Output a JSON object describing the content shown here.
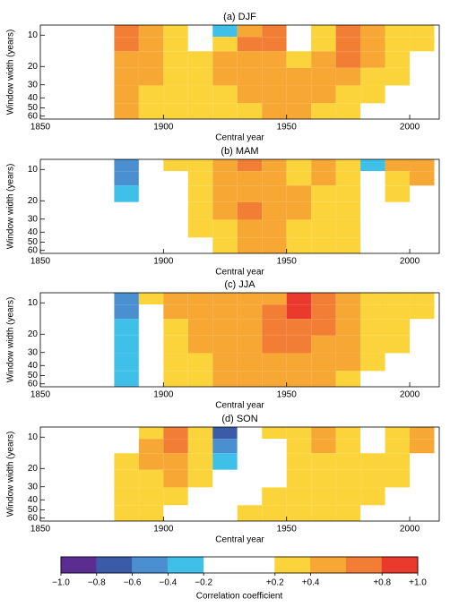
{
  "chart_data": [
    {
      "type": "heatmap",
      "title": "(a) DJF",
      "xlabel": "Central year",
      "ylabel": "Window width (years)",
      "x": [
        1885,
        1895,
        1905,
        1915,
        1925,
        1935,
        1945,
        1955,
        1965,
        1975,
        1985,
        1995,
        2005
      ],
      "y": [
        9,
        12,
        17,
        25,
        37,
        55
      ],
      "z": [
        [
          0.6,
          0.5,
          0.3,
          0.1,
          -0.3,
          0.5,
          0.7,
          -0.1,
          0.3,
          0.7,
          0.5,
          0.3,
          0.3
        ],
        [
          0.7,
          0.5,
          0.3,
          0.1,
          0.3,
          0.6,
          0.6,
          0.1,
          0.3,
          0.7,
          0.5,
          0.3,
          0.3
        ],
        [
          0.5,
          0.5,
          0.3,
          0.3,
          0.5,
          0.5,
          0.5,
          0.3,
          0.5,
          0.6,
          0.5,
          0.3,
          null
        ],
        [
          0.5,
          0.5,
          0.3,
          0.3,
          0.5,
          0.5,
          0.5,
          0.5,
          0.5,
          0.5,
          0.3,
          0.3,
          null
        ],
        [
          0.5,
          0.3,
          0.3,
          0.3,
          0.3,
          0.5,
          0.5,
          0.5,
          0.5,
          0.3,
          0.3,
          null,
          null
        ],
        [
          0.5,
          0.3,
          0.3,
          0.3,
          0.3,
          0.3,
          0.5,
          0.5,
          0.3,
          0.3,
          null,
          null,
          null
        ]
      ],
      "xlim": [
        1850,
        2012
      ],
      "xticks": [
        1850,
        1900,
        1950,
        2000
      ],
      "ylim": [
        8,
        64
      ],
      "yticks": [
        10,
        20,
        30,
        40,
        50,
        60
      ],
      "yscale": "log"
    },
    {
      "type": "heatmap",
      "title": "(b) MAM",
      "xlabel": "Central year",
      "ylabel": "Window width (years)",
      "x": [
        1885,
        1895,
        1905,
        1915,
        1925,
        1935,
        1945,
        1955,
        1965,
        1975,
        1985,
        1995,
        2005
      ],
      "y": [
        9,
        12,
        17,
        25,
        37,
        55
      ],
      "z": [
        [
          -0.5,
          0.1,
          0.3,
          0.3,
          0.5,
          0.6,
          0.5,
          0.3,
          0.5,
          0.3,
          -0.3,
          0.5,
          0.5
        ],
        [
          -0.5,
          0.1,
          0.1,
          0.3,
          0.5,
          0.5,
          0.5,
          0.3,
          0.5,
          0.3,
          0.1,
          0.3,
          0.5
        ],
        [
          -0.3,
          0.1,
          0.1,
          0.3,
          0.5,
          0.5,
          0.5,
          0.5,
          0.3,
          0.3,
          0.1,
          0.3,
          null
        ],
        [
          0.1,
          0.1,
          0.1,
          0.3,
          0.5,
          0.6,
          0.5,
          0.5,
          0.3,
          0.3,
          0.1,
          0.1,
          null
        ],
        [
          0.1,
          0.1,
          0.1,
          0.3,
          0.3,
          0.5,
          0.5,
          0.3,
          0.3,
          0.3,
          0.1,
          null,
          null
        ],
        [
          0.1,
          0.1,
          0.1,
          0.1,
          0.3,
          0.5,
          0.5,
          0.3,
          0.3,
          0.3,
          null,
          null,
          null
        ]
      ],
      "xlim": [
        1850,
        2012
      ],
      "xticks": [
        1850,
        1900,
        1950,
        2000
      ],
      "ylim": [
        8,
        64
      ],
      "yticks": [
        10,
        20,
        30,
        40,
        50,
        60
      ],
      "yscale": "log"
    },
    {
      "type": "heatmap",
      "title": "(c) JJA",
      "xlabel": "Central year",
      "ylabel": "Window width (years)",
      "x": [
        1885,
        1895,
        1905,
        1915,
        1925,
        1935,
        1945,
        1955,
        1965,
        1975,
        1985,
        1995,
        2005
      ],
      "y": [
        9,
        12,
        17,
        25,
        37,
        55
      ],
      "z": [
        [
          -0.5,
          0.3,
          0.5,
          0.5,
          0.5,
          0.5,
          0.5,
          0.9,
          0.7,
          0.5,
          0.3,
          0.3,
          0.3
        ],
        [
          -0.5,
          0.1,
          0.5,
          0.5,
          0.5,
          0.5,
          0.6,
          0.8,
          0.7,
          0.5,
          0.3,
          0.3,
          0.3
        ],
        [
          -0.3,
          0.1,
          0.3,
          0.5,
          0.5,
          0.5,
          0.6,
          0.7,
          0.6,
          0.5,
          0.3,
          0.3,
          null
        ],
        [
          -0.3,
          0.1,
          0.3,
          0.5,
          0.5,
          0.5,
          0.6,
          0.6,
          0.5,
          0.5,
          0.3,
          0.3,
          null
        ],
        [
          -0.3,
          0.1,
          0.3,
          0.3,
          0.5,
          0.5,
          0.5,
          0.5,
          0.5,
          0.5,
          0.3,
          null,
          null
        ],
        [
          -0.3,
          0.1,
          0.3,
          0.3,
          0.5,
          0.5,
          0.5,
          0.5,
          0.5,
          0.3,
          null,
          null,
          null
        ]
      ],
      "xlim": [
        1850,
        2012
      ],
      "xticks": [
        1850,
        1900,
        1950,
        2000
      ],
      "ylim": [
        8,
        64
      ],
      "yticks": [
        10,
        20,
        30,
        40,
        50,
        60
      ],
      "yscale": "log"
    },
    {
      "type": "heatmap",
      "title": "(d) SON",
      "xlabel": "Central year",
      "ylabel": "Window width (years)",
      "x": [
        1885,
        1895,
        1905,
        1915,
        1925,
        1935,
        1945,
        1955,
        1965,
        1975,
        1985,
        1995,
        2005
      ],
      "y": [
        9,
        12,
        17,
        25,
        37,
        55
      ],
      "z": [
        [
          0.1,
          0.3,
          0.7,
          0.3,
          -0.7,
          0.1,
          0.3,
          0.3,
          0.5,
          0.3,
          0.1,
          0.3,
          0.5
        ],
        [
          0.1,
          0.5,
          0.6,
          0.3,
          -0.5,
          0.1,
          0.1,
          0.3,
          0.5,
          0.3,
          0.1,
          0.3,
          0.5
        ],
        [
          0.3,
          0.5,
          0.5,
          0.3,
          -0.3,
          0.1,
          0.1,
          0.3,
          0.3,
          0.3,
          0.3,
          0.3,
          null
        ],
        [
          0.3,
          0.3,
          0.5,
          0.3,
          0.1,
          0.1,
          0.1,
          0.3,
          0.3,
          0.3,
          0.3,
          0.3,
          null
        ],
        [
          0.3,
          0.3,
          0.3,
          0.1,
          0.1,
          0.1,
          0.3,
          0.3,
          0.3,
          0.3,
          0.3,
          null,
          null
        ],
        [
          0.3,
          0.3,
          0.1,
          0.1,
          0.1,
          0.3,
          0.3,
          0.3,
          0.3,
          0.3,
          null,
          null,
          null
        ]
      ],
      "xlim": [
        1850,
        2012
      ],
      "xticks": [
        1850,
        1900,
        1950,
        2000
      ],
      "ylim": [
        8,
        64
      ],
      "yticks": [
        10,
        20,
        30,
        40,
        50,
        60
      ],
      "yscale": "log"
    }
  ],
  "colorbar": {
    "label": "Correlation coefficient",
    "range": [
      -1,
      1
    ],
    "colors": [
      "#5b2d91",
      "#3b5aa8",
      "#4a90d0",
      "#3fc0e8",
      "#ffffff",
      "#ffffff",
      "#fad43a",
      "#f7a733",
      "#f27d35",
      "#ea3a2e"
    ],
    "ticks": [
      {
        "value": -1,
        "label": "−1.0"
      },
      {
        "value": -0.8,
        "label": "−0.8"
      },
      {
        "value": -0.6,
        "label": "−0.6"
      },
      {
        "value": -0.4,
        "label": "−0.4"
      },
      {
        "value": -0.2,
        "label": "−0.2"
      },
      {
        "value": 0.2,
        "label": "+0.2"
      },
      {
        "value": 0.4,
        "label": "+0.4"
      },
      {
        "value": 0.8,
        "label": "+0.8"
      },
      {
        "value": 1,
        "label": "+1.0"
      }
    ]
  }
}
